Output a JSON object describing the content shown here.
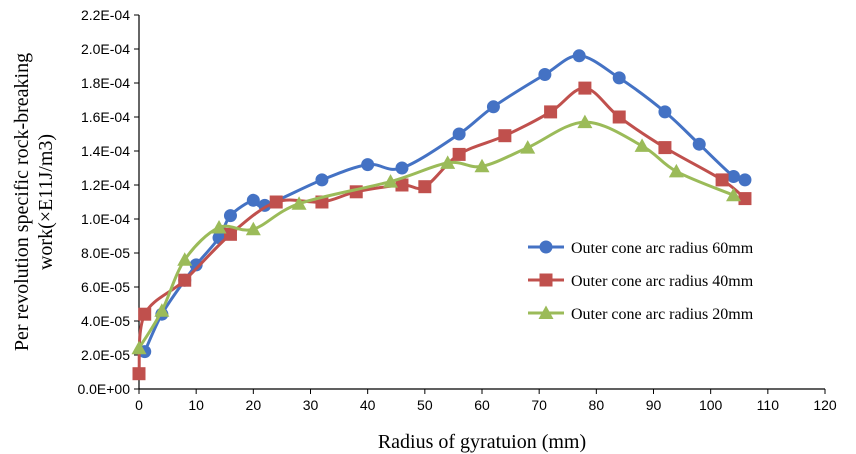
{
  "chart_data": {
    "type": "line",
    "xlabel": "Radius of gyratuion (mm)",
    "ylabel": [
      "Per revolution specific rock-breaking",
      "work(×E11J/m3)"
    ],
    "xlim": [
      0,
      120
    ],
    "ylim": [
      0,
      0.00022
    ],
    "xticks": [
      "0",
      "10",
      "20",
      "30",
      "40",
      "50",
      "60",
      "70",
      "80",
      "90",
      "100",
      "110",
      "120"
    ],
    "yticks": [
      "0.0E+00",
      "2.0E-05",
      "4.0E-05",
      "6.0E-05",
      "8.0E-05",
      "1.0E-04",
      "1.2E-04",
      "1.4E-04",
      "1.6E-04",
      "1.8E-04",
      "2.0E-04",
      "2.2E-04"
    ],
    "grid": false,
    "legend_position": "right",
    "series": [
      {
        "name": "Outer cone arc radius 60mm",
        "color": "#4472C4",
        "marker": "circle",
        "x": [
          1,
          4,
          8,
          10,
          14,
          16,
          20,
          22,
          32,
          40,
          46,
          56,
          62,
          71,
          77,
          84,
          92,
          98,
          104,
          106
        ],
        "y": [
          2.2e-05,
          4.4e-05,
          6.4e-05,
          7.3e-05,
          8.9e-05,
          0.000102,
          0.000111,
          0.000108,
          0.000123,
          0.000132,
          0.00013,
          0.00015,
          0.000166,
          0.000185,
          0.000196,
          0.000183,
          0.000163,
          0.000144,
          0.000125,
          0.000123
        ]
      },
      {
        "name": "Outer cone arc radius 40mm",
        "color": "#C0504D",
        "marker": "square",
        "x": [
          0,
          1,
          8,
          16,
          24,
          32,
          38,
          46,
          50,
          56,
          64,
          72,
          78,
          84,
          92,
          102,
          106
        ],
        "y": [
          9e-06,
          4.4e-05,
          6.4e-05,
          9.1e-05,
          0.00011,
          0.00011,
          0.000116,
          0.00012,
          0.000119,
          0.000138,
          0.000149,
          0.000163,
          0.000177,
          0.00016,
          0.000142,
          0.000123,
          0.000112
        ]
      },
      {
        "name": "Outer cone arc radius 20mm",
        "color": "#9BBB59",
        "marker": "triangle",
        "x": [
          0,
          4,
          8,
          14,
          20,
          28,
          44,
          54,
          60,
          68,
          78,
          88,
          94,
          104
        ],
        "y": [
          2.4e-05,
          4.6e-05,
          7.6e-05,
          9.5e-05,
          9.4e-05,
          0.000109,
          0.000122,
          0.000133,
          0.000131,
          0.000142,
          0.000157,
          0.000143,
          0.000128,
          0.000114
        ]
      }
    ]
  }
}
